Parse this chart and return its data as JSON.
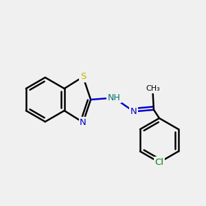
{
  "bg": "#f0f0f0",
  "bc": "#000000",
  "S_col": "#b8b800",
  "N_col": "#0000cc",
  "H_col": "#007070",
  "Cl_col": "#008000",
  "lw": 1.8,
  "BL": 1.3,
  "bx": 2.6,
  "by": 6.2,
  "xlim": [
    0,
    12
  ],
  "ylim": [
    0,
    12
  ],
  "figsize": [
    3.0,
    3.0
  ],
  "dpi": 100
}
